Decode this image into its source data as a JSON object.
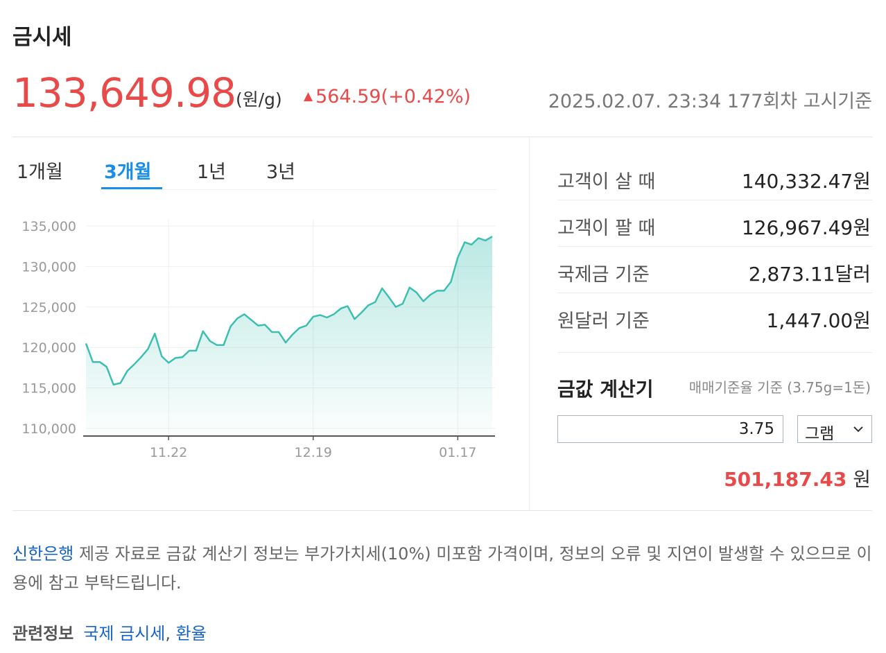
{
  "header": {
    "title": "금시세",
    "price": "133,649.98",
    "unit": "(원/g)",
    "change_arrow": "▲",
    "change": "564.59(+0.42%)",
    "timestamp": "2025.02.07. 23:34 177회차 고시기준"
  },
  "tabs": [
    {
      "label": "1개월",
      "active": false
    },
    {
      "label": "3개월",
      "active": true
    },
    {
      "label": "1년",
      "active": false
    },
    {
      "label": "3년",
      "active": false
    }
  ],
  "chart_data": {
    "type": "area",
    "ylim": [
      110000,
      135000
    ],
    "y_ticks": [
      "135,000",
      "130,000",
      "125,000",
      "120,000",
      "115,000",
      "110,000"
    ],
    "x_ticks": [
      "11.22",
      "12.19",
      "01.17"
    ],
    "grid": true,
    "series": [
      {
        "values": [
          120500,
          118200,
          118200,
          117600,
          115400,
          115600,
          117100,
          117900,
          118800,
          119800,
          121700,
          118900,
          118100,
          118700,
          118800,
          119600,
          119600,
          122000,
          120800,
          120300,
          120300,
          122600,
          123600,
          124100,
          123400,
          122700,
          122800,
          121900,
          121900,
          120600,
          121600,
          122400,
          122700,
          123800,
          124000,
          123700,
          124100,
          124800,
          125100,
          123500,
          124300,
          125200,
          125600,
          127300,
          126200,
          125000,
          125400,
          127400,
          126800,
          125700,
          126500,
          127000,
          127000,
          128100,
          131100,
          133000,
          132700,
          133500,
          133200,
          133700
        ]
      }
    ]
  },
  "colors": {
    "accent_red": "#e84a4a",
    "accent_blue": "#1a8ee6",
    "chart_line": "#3cbfb0"
  },
  "info_rows": [
    {
      "label": "고객이 살 때",
      "value": "140,332.47원"
    },
    {
      "label": "고객이 팔 때",
      "value": "126,967.49원"
    },
    {
      "label": "국제금 기준",
      "value": "2,873.11달러"
    },
    {
      "label": "원달러 기준",
      "value": "1,447.00원"
    }
  ],
  "calculator": {
    "title": "금값 계산기",
    "note": "매매기준율 기준 (3.75g=1돈)",
    "input_value": "3.75",
    "unit_selected": "그램",
    "result_value": "501,187.43",
    "result_unit": "원"
  },
  "notice": {
    "bank": "신한은행",
    "text": " 제공 자료로 금값 계산기 정보는 부가가치세(10%) 미포함 가격이며, 정보의 오류 및 지연이 발생할 수 있으므로 이용에 참고 부탁드립니다."
  },
  "related": {
    "heading": "관련정보",
    "links": [
      "국제 금시세",
      "환율"
    ],
    "separator": ", "
  }
}
